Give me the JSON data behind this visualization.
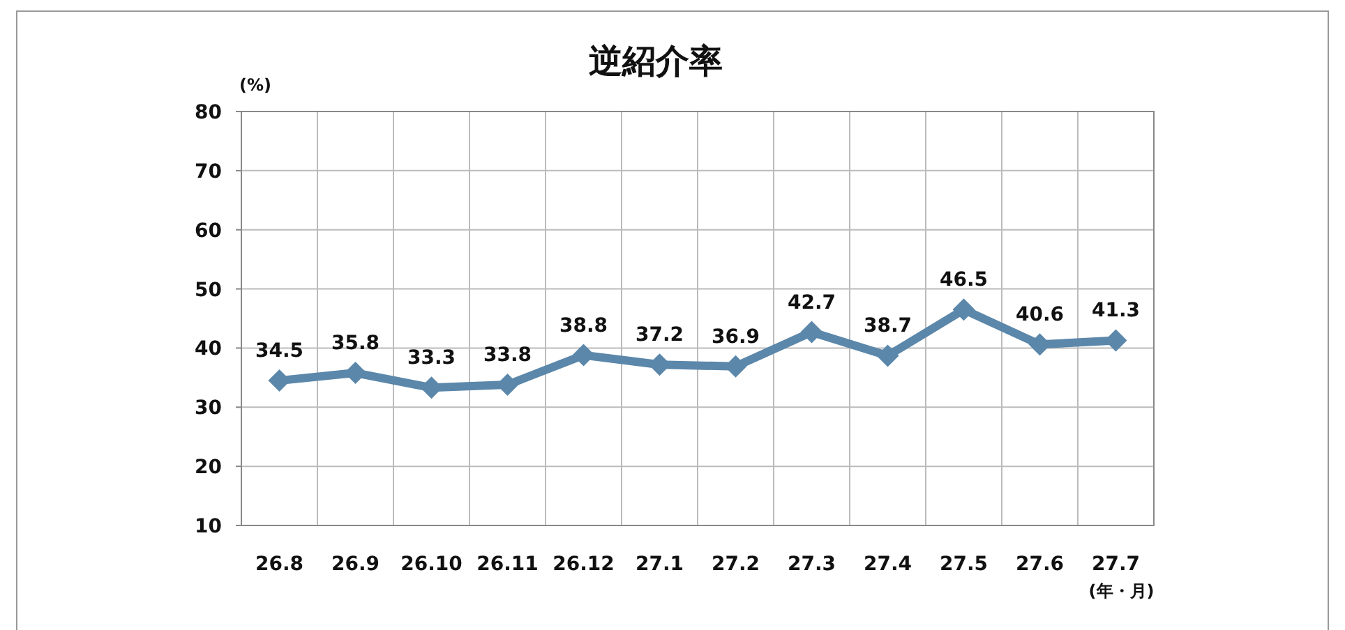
{
  "chart_data": {
    "type": "line",
    "title": "逆紹介率",
    "ylabel": "(%)",
    "xlabel": "(年・月)",
    "categories": [
      "26.8",
      "26.9",
      "26.10",
      "26.11",
      "26.12",
      "27.1",
      "27.2",
      "27.3",
      "27.4",
      "27.5",
      "27.6",
      "27.7"
    ],
    "series": [
      {
        "color": "#5b87aa",
        "values": [
          34.5,
          35.8,
          33.3,
          33.8,
          38.8,
          37.2,
          36.9,
          42.7,
          38.7,
          46.5,
          40.6,
          41.3
        ]
      }
    ],
    "ylim": [
      10,
      80
    ],
    "yticks": [
      10,
      20,
      30,
      40,
      50,
      60,
      70,
      80
    ],
    "grid": true,
    "marker": "diamond",
    "line_style": "solid",
    "data_labels": true
  }
}
